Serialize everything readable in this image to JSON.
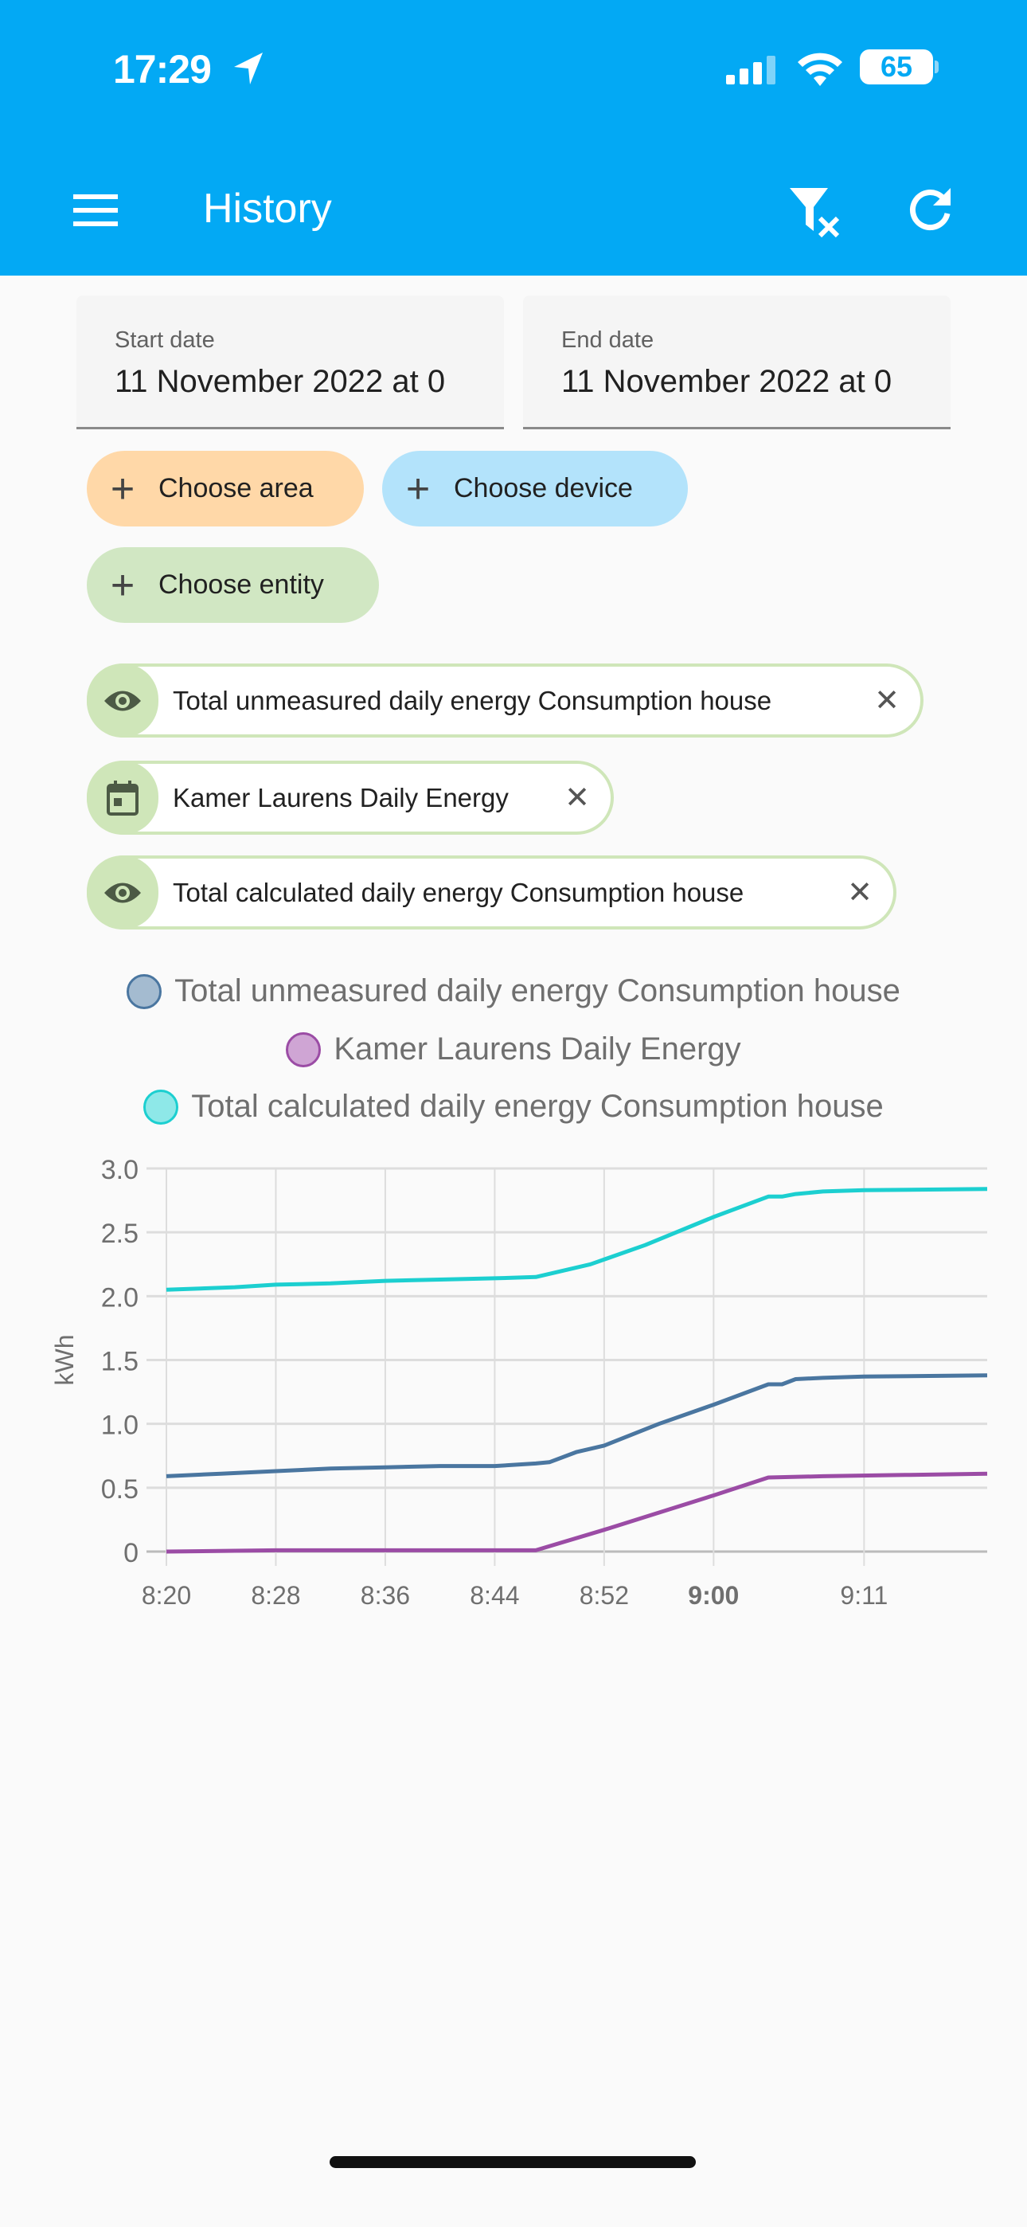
{
  "status_bar": {
    "time": "17:29",
    "battery": "65"
  },
  "app_bar": {
    "title": "History",
    "icons": [
      "menu-icon",
      "filter-remove-icon",
      "refresh-icon"
    ]
  },
  "date_fields": {
    "start": {
      "label": "Start date",
      "value": "11 November 2022 at 0"
    },
    "end": {
      "label": "End date",
      "value": "11 November 2022 at 0"
    }
  },
  "target_chips": [
    {
      "label": "Choose area",
      "color": "#ffd8a8"
    },
    {
      "label": "Choose device",
      "color": "#b3e3fb"
    },
    {
      "label": "Choose entity",
      "color": "#d1e7c3"
    }
  ],
  "entity_chips": [
    {
      "label": "Total unmeasured daily energy Consumption house",
      "icon": "eye-icon"
    },
    {
      "label": "Kamer Laurens Daily Energy",
      "icon": "calendar-icon"
    },
    {
      "label": "Total calculated daily energy Consumption house",
      "icon": "eye-icon"
    }
  ],
  "chart_data": {
    "type": "line",
    "ylabel": "kWh",
    "ylim": [
      0,
      3.0
    ],
    "yticks": [
      "0",
      "0.5",
      "1.0",
      "1.5",
      "2.0",
      "2.5",
      "3.0"
    ],
    "xlim": [
      "8:20",
      "9:20"
    ],
    "xticks": [
      "8:20",
      "8:28",
      "8:36",
      "8:44",
      "8:52",
      "9:00",
      "9:11"
    ],
    "grid": true,
    "legend": "top",
    "series": [
      {
        "name": "Total unmeasured daily energy Consumption house",
        "color": "#4a76a0",
        "fill": "#a4bbd0",
        "x": [
          "8:20",
          "8:24",
          "8:28",
          "8:32",
          "8:36",
          "8:40",
          "8:44",
          "8:47",
          "8:48",
          "8:50",
          "8:52",
          "8:56",
          "9:00",
          "9:04",
          "9:05",
          "9:06",
          "9:08",
          "9:11",
          "9:20"
        ],
        "y": [
          0.59,
          0.61,
          0.63,
          0.65,
          0.66,
          0.67,
          0.67,
          0.69,
          0.7,
          0.78,
          0.83,
          1.0,
          1.15,
          1.31,
          1.31,
          1.35,
          1.36,
          1.37,
          1.38
        ]
      },
      {
        "name": "Kamer Laurens Daily Energy",
        "color": "#9b4ca5",
        "fill": "#cfa5d4",
        "x": [
          "8:20",
          "8:28",
          "8:36",
          "8:44",
          "8:47",
          "8:52",
          "9:00",
          "9:04",
          "9:08",
          "9:14",
          "9:20"
        ],
        "y": [
          0,
          0.01,
          0.01,
          0.01,
          0.01,
          0.17,
          0.44,
          0.58,
          0.59,
          0.6,
          0.61
        ]
      },
      {
        "name": "Total calculated daily energy Consumption house",
        "color": "#1ccfd0",
        "fill": "#8ee8e8",
        "x": [
          "8:20",
          "8:25",
          "8:28",
          "8:32",
          "8:36",
          "8:40",
          "8:44",
          "8:47",
          "8:51",
          "8:55",
          "9:00",
          "9:04",
          "9:05",
          "9:06",
          "9:08",
          "9:11",
          "9:20"
        ],
        "y": [
          2.05,
          2.07,
          2.09,
          2.1,
          2.12,
          2.13,
          2.14,
          2.15,
          2.25,
          2.4,
          2.62,
          2.78,
          2.78,
          2.8,
          2.82,
          2.83,
          2.84
        ]
      }
    ]
  }
}
